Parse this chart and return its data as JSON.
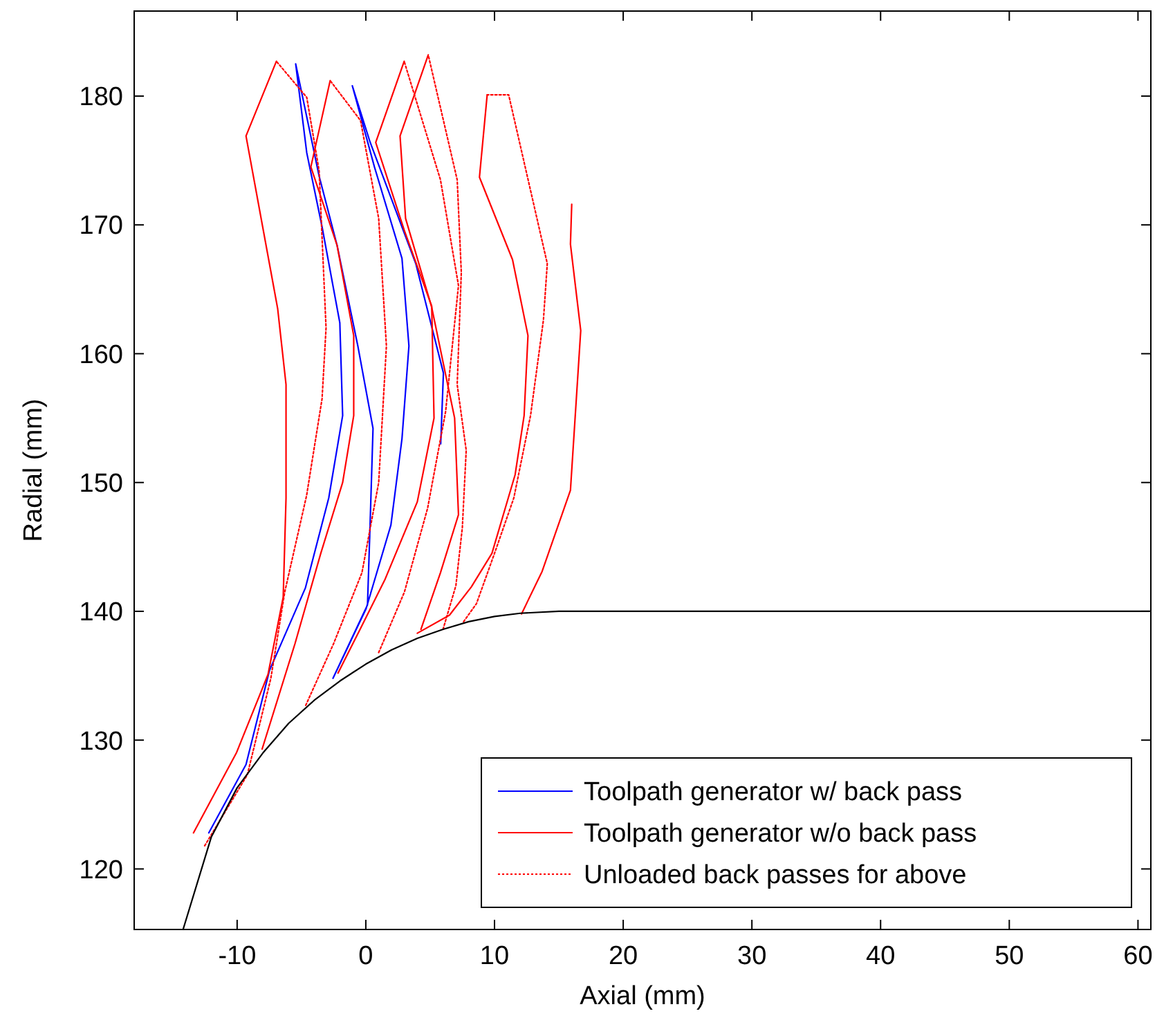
{
  "chart_data": {
    "type": "line",
    "xlabel": "Axial (mm)",
    "ylabel": "Radial (mm)",
    "xlim": [
      -18,
      61
    ],
    "ylim": [
      115.3,
      186.6
    ],
    "xticks": [
      -10,
      0,
      10,
      20,
      30,
      40,
      50,
      60
    ],
    "yticks": [
      120,
      130,
      140,
      150,
      160,
      170,
      180
    ],
    "grid": false,
    "legend": "bottom right",
    "marker": "none",
    "series": [
      {
        "name": "Toolpath generator w/ back pass",
        "color": "#0000ff",
        "line_style": "solid",
        "x": [
          -12.2,
          -9.31,
          -7.49,
          -4.7,
          -2.88,
          -1.8,
          -2.02,
          -3.41,
          -4.59,
          -5.45,
          -3.63,
          -2.23,
          -0.62,
          0.56,
          0.34,
          0.13,
          -2.55,
          0.02,
          1.95,
          2.81,
          3.35,
          2.81,
          0.67,
          -1.05,
          0.34,
          3.88,
          6.03,
          5.82
        ],
        "values": [
          122.8,
          128.1,
          135.4,
          141.8,
          148.8,
          155.2,
          162.4,
          169.9,
          175.6,
          182.5,
          173.8,
          168.4,
          160.6,
          154.2,
          147,
          140.5,
          134.8,
          140.2,
          146.7,
          153.4,
          160.6,
          167.4,
          174.5,
          180.8,
          176.4,
          167,
          158.5,
          153
        ]
      },
      {
        "name": "Toolpath generator w/o back pass",
        "color": "#ff0000",
        "line_style": "solid",
        "x": [
          -6.95,
          -9.31,
          -6.85,
          -6.2,
          -6.2,
          -6.42,
          -7.6,
          -10.06,
          -13.39
        ],
        "values": [
          182.7,
          176.9,
          163.5,
          157.6,
          148.8,
          141.1,
          135.1,
          129,
          122.8
        ]
      },
      {
        "name": "Unloaded back passes for above",
        "color": "#ff0000",
        "line_style": "dotted",
        "x": [
          -12.52,
          -9.21,
          -7.38,
          -6.3,
          -4.6,
          -3.4,
          -3.09,
          -3.63,
          -4.59,
          -6.95
        ],
        "values": [
          121.8,
          127.3,
          134.8,
          141.5,
          149,
          156.5,
          162,
          174.2,
          179.9,
          182.7
        ]
      },
      {
        "color": "#ff0000",
        "line_style": "solid",
        "x": [
          -2.77,
          -4.27,
          -2.23,
          -0.94,
          -0.94,
          -1.8,
          -3.5,
          -5.5,
          -8.06
        ],
        "values": [
          181.2,
          174.5,
          168.4,
          161.4,
          155.2,
          150,
          144.5,
          137.5,
          129.3
        ]
      },
      {
        "color": "#ff0000",
        "line_style": "dotted",
        "x": [
          -4.67,
          -2.5,
          -0.3,
          1,
          1.6,
          1,
          -0.41,
          -2.77
        ],
        "values": [
          132.7,
          137.5,
          143,
          150,
          160.6,
          170.5,
          178.1,
          181.2
        ]
      },
      {
        "color": "#ff0000",
        "line_style": "solid",
        "x": [
          2.98,
          0.77,
          2.98,
          5.12,
          5.3,
          4,
          1.5,
          -0.5,
          -2.16
        ],
        "values": [
          182.7,
          176.4,
          169.6,
          163.7,
          155,
          148.5,
          142.5,
          138.5,
          135.2
        ]
      },
      {
        "color": "#ff0000",
        "line_style": "dotted",
        "x": [
          1,
          3,
          4.8,
          6.2,
          7.2,
          5.8,
          2.98
        ],
        "values": [
          136.8,
          141.5,
          148,
          155.5,
          165.3,
          173.5,
          182.7
        ]
      },
      {
        "color": "#ff0000",
        "line_style": "solid",
        "x": [
          4.85,
          2.66,
          3.09,
          5.12,
          6.9,
          7.2,
          5.8,
          4.28
        ],
        "values": [
          183.2,
          176.9,
          170.5,
          163.6,
          155,
          147.5,
          143,
          138.6
        ]
      },
      {
        "color": "#ff0000",
        "line_style": "dotted",
        "x": [
          6,
          7,
          7.5,
          7.8,
          7.1,
          7.42,
          7.1,
          4.85
        ],
        "values": [
          138.6,
          142,
          146.5,
          152.5,
          157.6,
          166.3,
          173.5,
          183.2
        ]
      },
      {
        "color": "#ff0000",
        "line_style": "solid",
        "x": [
          9.43,
          8.83,
          11.4,
          12.6,
          12.3,
          11.6,
          9.8,
          8.2,
          6.5,
          4
        ],
        "values": [
          180.1,
          173.7,
          167.3,
          161.4,
          155.2,
          150.6,
          144.5,
          141.9,
          139.7,
          138.3
        ]
      },
      {
        "color": "#ff0000",
        "line_style": "dotted",
        "x": [
          7.6,
          8.6,
          10,
          11.5,
          12.8,
          13.8,
          14.1,
          11.1,
          9.43
        ],
        "values": [
          139.2,
          140.6,
          144.5,
          148.8,
          155.2,
          162.6,
          167,
          180.1,
          180.1
        ]
      },
      {
        "color": "#ff0000",
        "line_style": "solid",
        "x": [
          16,
          15.9,
          16.7,
          15.9,
          13.7,
          12.1
        ],
        "values": [
          171.6,
          168.5,
          161.8,
          149.4,
          143.1,
          139.8
        ]
      },
      {
        "color": "#000000",
        "line_style": "solid",
        "x": [
          -14.2,
          -12,
          -10,
          -8,
          -6,
          -4,
          -2,
          0,
          2,
          4,
          6,
          8,
          10,
          12,
          15,
          61
        ],
        "values": [
          115.3,
          122.5,
          126.3,
          129,
          131.3,
          133.1,
          134.6,
          135.9,
          137,
          137.9,
          138.6,
          139.2,
          139.6,
          139.85,
          140,
          140
        ]
      }
    ]
  }
}
